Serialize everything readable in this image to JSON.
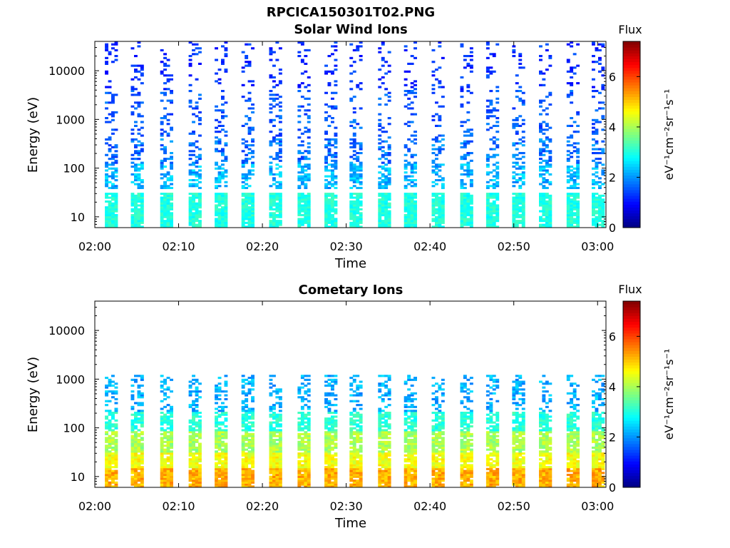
{
  "figure": {
    "title": "RPCICA150301T02.PNG"
  },
  "colormap": "jet",
  "chart_data": [
    {
      "type": "heatmap",
      "title": "Solar Wind Ions",
      "xlabel": "Time",
      "ylabel": "Energy (eV)",
      "xlim": [
        "02:00",
        "03:01"
      ],
      "ylim": [
        6,
        40000
      ],
      "yscale": "log",
      "x_ticks": [
        "02:00",
        "02:10",
        "02:20",
        "02:30",
        "02:40",
        "02:50",
        "03:00"
      ],
      "y_ticks": [
        "10",
        "100",
        "1000",
        "10000"
      ],
      "colorbar": {
        "title": "Flux",
        "label": "eV⁻¹cm⁻²sr⁻¹s⁻¹",
        "range": [
          0,
          7.4
        ],
        "ticks": [
          "0",
          "2",
          "4",
          "6"
        ]
      },
      "sweep_start_minutes": [
        1.2,
        4.3,
        7.8,
        11.2,
        14.3,
        17.5,
        20.8,
        24.2,
        27.4,
        30.4,
        33.8,
        36.9,
        40.2,
        43.6,
        46.7,
        49.8,
        53.0,
        56.3,
        59.3
      ],
      "bands": [
        {
          "e_min": 6,
          "e_max": 30,
          "flux": [
            2.7,
            3.3
          ],
          "fill": 0.9
        },
        {
          "e_min": 35,
          "e_max": 120,
          "flux": [
            1.8,
            2.7
          ],
          "fill": 0.55
        },
        {
          "e_min": 120,
          "e_max": 400,
          "flux": [
            1.3,
            2.2
          ],
          "fill": 0.4
        },
        {
          "e_min": 400,
          "e_max": 4000,
          "flux": [
            1.2,
            1.9
          ],
          "fill": 0.22
        },
        {
          "e_min": 4000,
          "e_max": 40000,
          "flux": [
            0.9,
            1.6
          ],
          "fill": 0.18
        }
      ]
    },
    {
      "type": "heatmap",
      "title": "Cometary Ions",
      "xlabel": "Time",
      "ylabel": "Energy (eV)",
      "xlim": [
        "02:00",
        "03:01"
      ],
      "ylim": [
        6,
        40000
      ],
      "yscale": "log",
      "x_ticks": [
        "02:00",
        "02:10",
        "02:20",
        "02:30",
        "02:40",
        "02:50",
        "03:00"
      ],
      "y_ticks": [
        "10",
        "100",
        "1000",
        "10000"
      ],
      "colorbar": {
        "title": "Flux",
        "label": "eV⁻¹cm⁻²sr⁻¹s⁻¹",
        "range": [
          0,
          7.4
        ],
        "ticks": [
          "0",
          "2",
          "4",
          "6"
        ]
      },
      "sweep_start_minutes": [
        1.2,
        4.3,
        7.8,
        11.2,
        14.3,
        17.5,
        20.8,
        24.2,
        27.4,
        30.4,
        33.8,
        36.9,
        40.2,
        43.6,
        46.7,
        49.8,
        53.0,
        56.3,
        59.3
      ],
      "bands": [
        {
          "e_min": 6,
          "e_max": 14,
          "flux": [
            4.8,
            5.6
          ],
          "fill": 0.95
        },
        {
          "e_min": 14,
          "e_max": 30,
          "flux": [
            4.2,
            4.9
          ],
          "fill": 0.9
        },
        {
          "e_min": 30,
          "e_max": 80,
          "flux": [
            3.6,
            4.4
          ],
          "fill": 0.85
        },
        {
          "e_min": 80,
          "e_max": 200,
          "flux": [
            2.7,
            3.4
          ],
          "fill": 0.75
        },
        {
          "e_min": 200,
          "e_max": 1200,
          "flux": [
            1.8,
            2.6
          ],
          "fill": 0.4
        }
      ]
    }
  ]
}
